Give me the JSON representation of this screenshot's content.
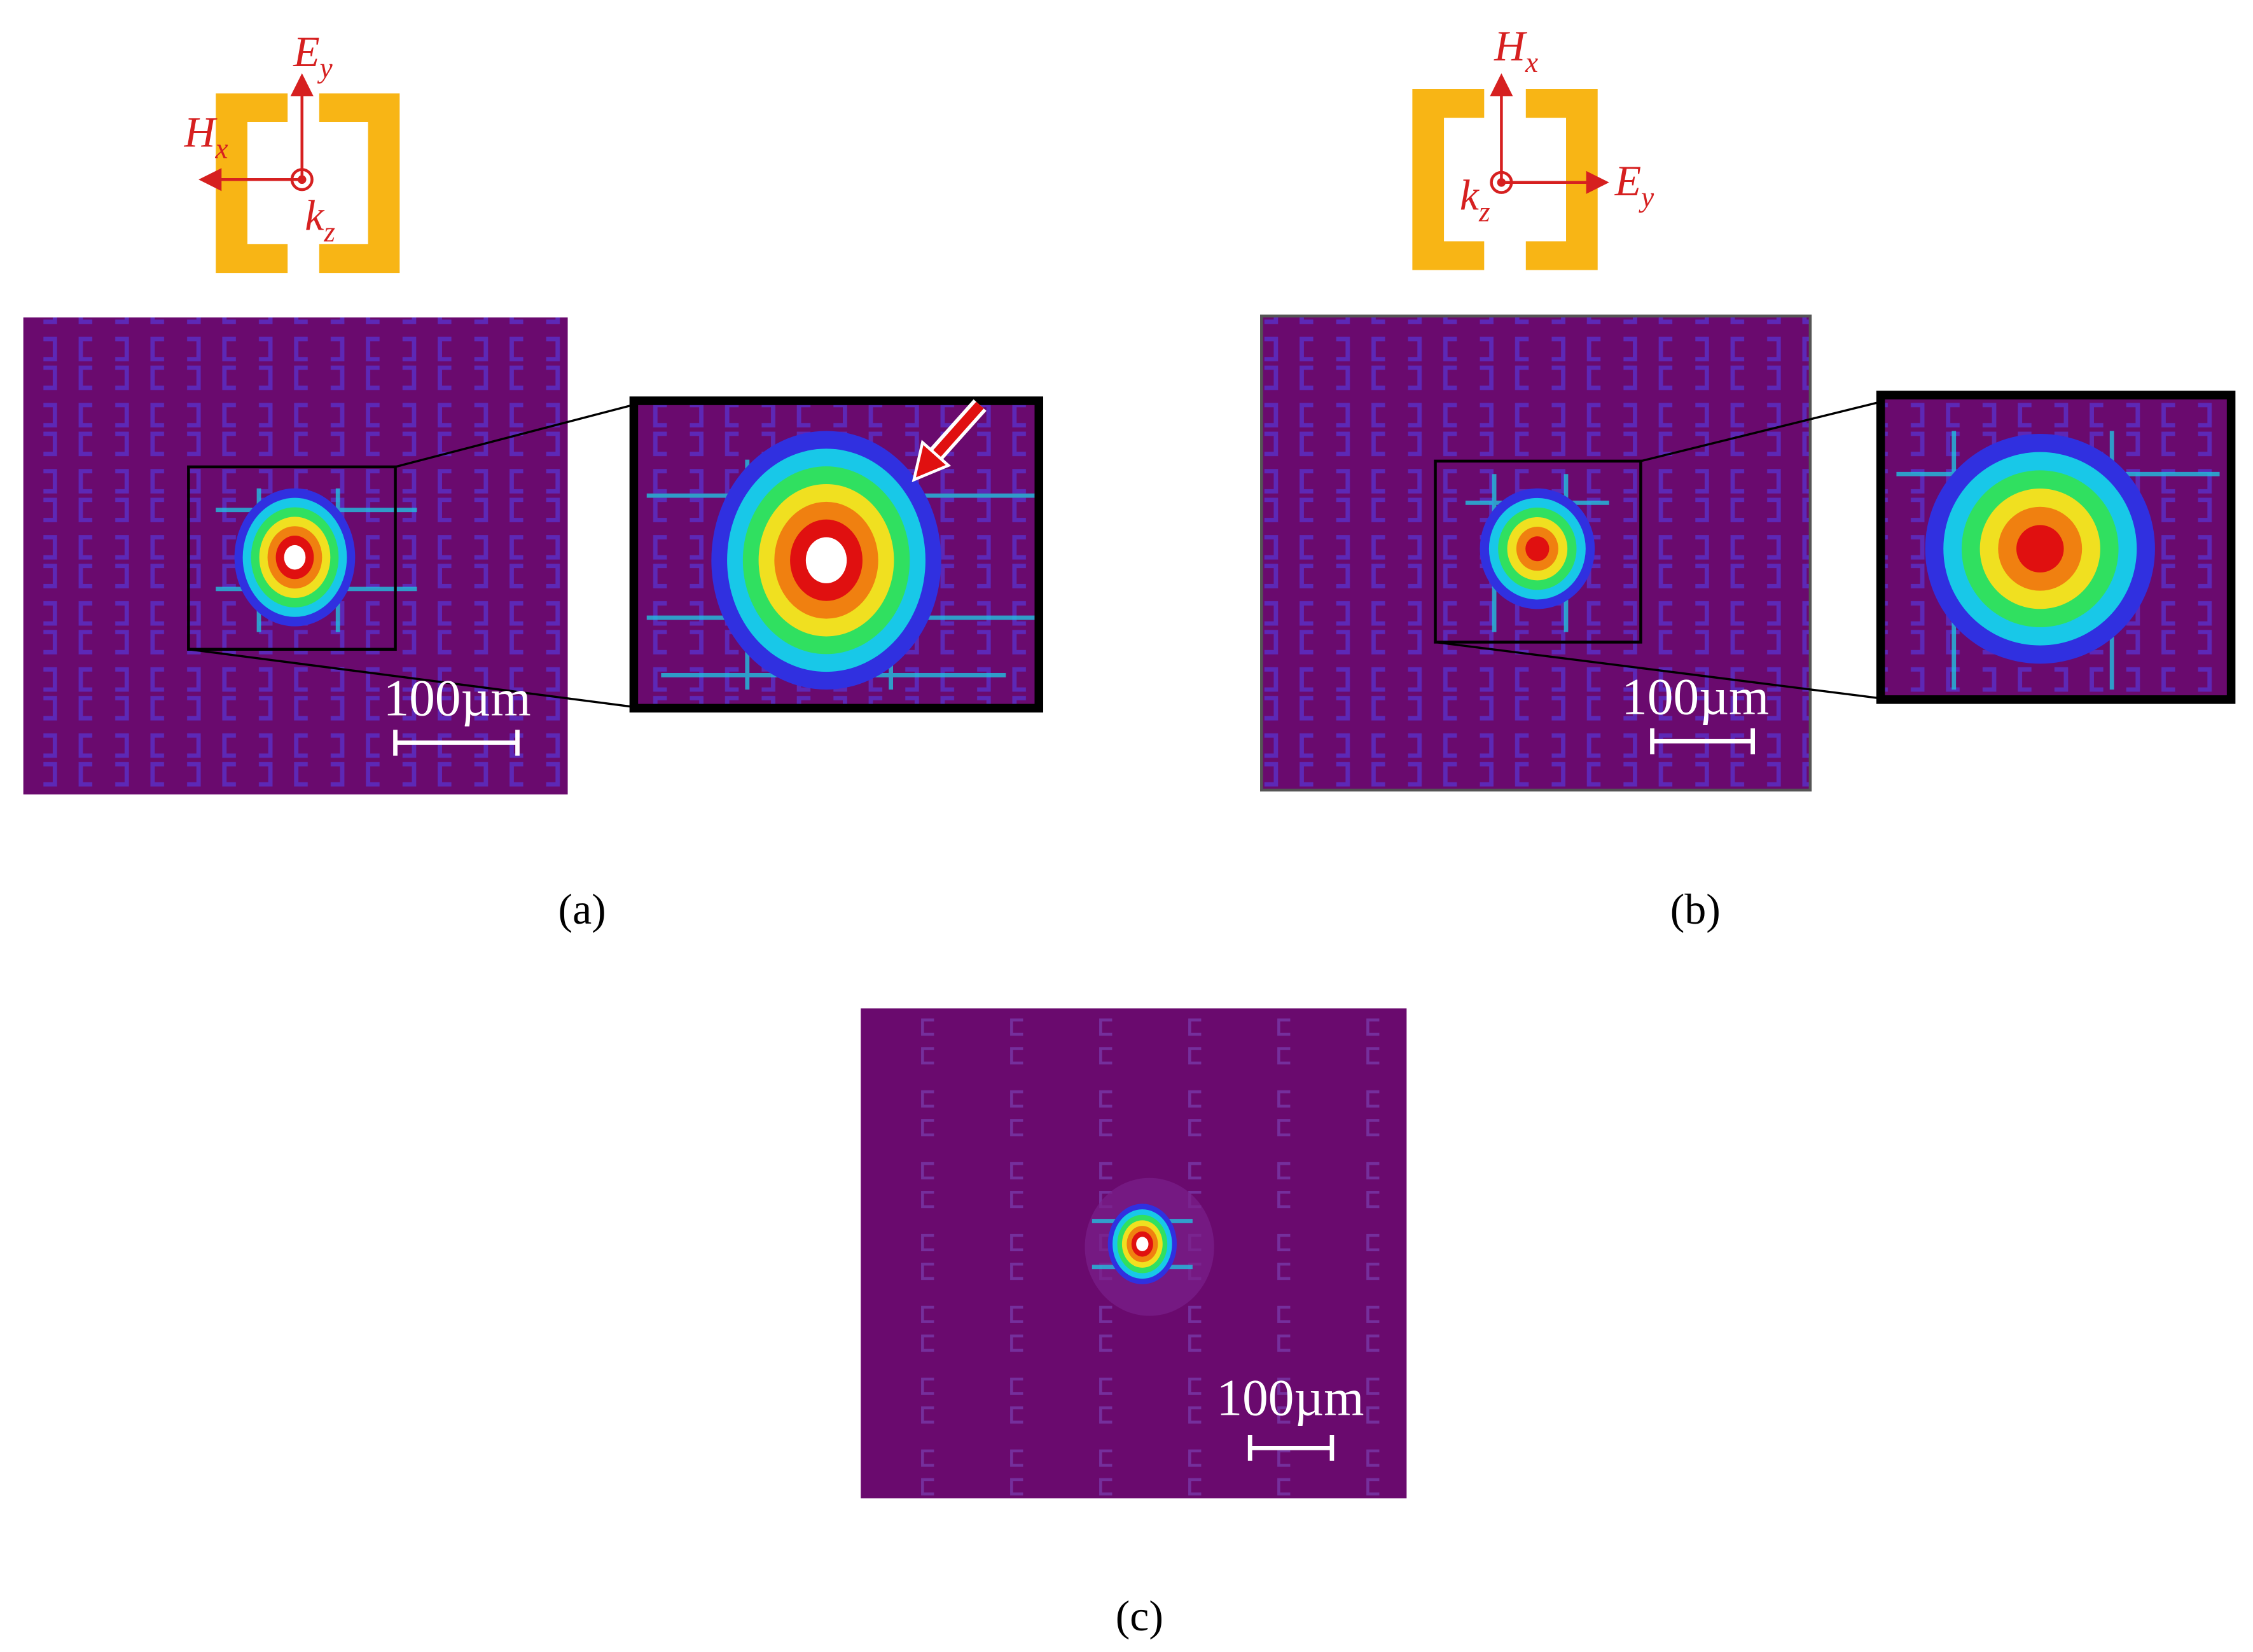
{
  "panels": [
    {
      "caption": "(a)",
      "scale_bar": "100µm",
      "polarization": [
        {
          "symbol": "E",
          "subscript": "y"
        },
        {
          "symbol": "H",
          "subscript": "x"
        },
        {
          "symbol": "k",
          "subscript": "z"
        }
      ]
    },
    {
      "caption": "(b)",
      "scale_bar": "100µm",
      "polarization": [
        {
          "symbol": "H",
          "subscript": "x"
        },
        {
          "symbol": "k",
          "subscript": "z"
        },
        {
          "symbol": "E",
          "subscript": "y"
        }
      ]
    },
    {
      "caption": "(c)",
      "scale_bar": "100µm"
    }
  ]
}
